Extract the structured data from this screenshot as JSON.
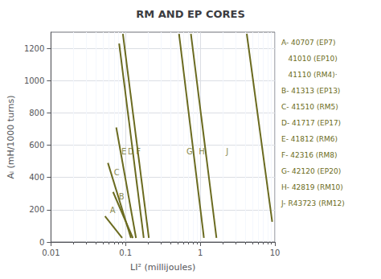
{
  "chart_data": {
    "type": "line",
    "title": "RM AND EP CORES",
    "xlabel": "LI² (millijoules)",
    "ylabel": "Aₗ (mH/1000 turns)",
    "log": "x",
    "grid": true,
    "color": "#6b6b20",
    "xlim": [
      0.01,
      10
    ],
    "ylim": [
      0,
      1300
    ],
    "xticks": [
      0.01,
      0.1,
      1,
      10
    ],
    "yticks": [
      0,
      200,
      400,
      600,
      800,
      1000,
      1200
    ],
    "series": [
      {
        "x": [
          0.053,
          0.09
        ],
        "values": [
          160,
          25
        ]
      },
      {
        "x": [
          0.068,
          0.125
        ],
        "values": [
          310,
          25
        ]
      },
      {
        "x": [
          0.058,
          0.118
        ],
        "values": [
          490,
          25
        ]
      },
      {
        "x": [
          0.075,
          0.138
        ],
        "values": [
          710,
          25
        ]
      },
      {
        "x": [
          0.082,
          0.175
        ],
        "values": [
          1230,
          25
        ]
      },
      {
        "x": [
          0.092,
          0.205
        ],
        "values": [
          1290,
          25
        ]
      },
      {
        "x": [
          0.52,
          1.12
        ],
        "values": [
          1290,
          25
        ]
      },
      {
        "x": [
          0.75,
          1.65
        ],
        "values": [
          1290,
          25
        ]
      },
      {
        "x": [
          4.2,
          9.2
        ],
        "values": [
          1290,
          125
        ]
      }
    ],
    "annotations": [
      {
        "text": "A",
        "x": 0.067,
        "y": 195
      },
      {
        "text": "B",
        "x": 0.088,
        "y": 280
      },
      {
        "text": "C",
        "x": 0.076,
        "y": 430
      },
      {
        "text": "E",
        "x": 0.095,
        "y": 560
      },
      {
        "text": "D",
        "x": 0.118,
        "y": 560
      },
      {
        "text": "F",
        "x": 0.148,
        "y": 560
      },
      {
        "text": "G",
        "x": 0.72,
        "y": 560
      },
      {
        "text": "H",
        "x": 1.05,
        "y": 560
      },
      {
        "text": "J",
        "x": 2.3,
        "y": 560
      }
    ],
    "side_text": [
      "A- 40707 (EP7)",
      "   41010 (EP10)",
      "   41110 (RM4)·",
      "B- 41313 (EP13)",
      "C- 41510 (RM5)",
      "D- 41717 (EP17)",
      "E- 41812 (RM6)",
      "F- 42316 (RM8)",
      "G- 42120 (EP20)",
      "H- 42819 (RM10)",
      "J- R43723 (RM12)"
    ]
  }
}
